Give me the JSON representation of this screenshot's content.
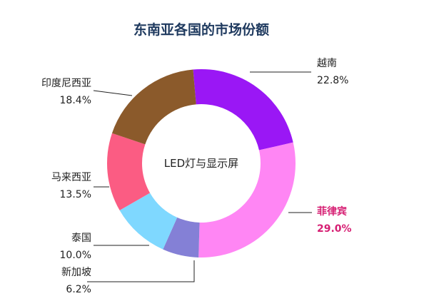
{
  "chart_data": {
    "type": "pie",
    "title": "东南亚各国的市场份额",
    "center_label": "LED灯与显示屏",
    "slices": [
      {
        "name": "越南",
        "value": 22.8,
        "value_label": "22.8%",
        "color": "#9a17f5",
        "highlight": false
      },
      {
        "name": "菲律宾",
        "value": 29.0,
        "value_label": "29.0%",
        "color": "#ff86f4",
        "highlight": true
      },
      {
        "name": "新加坡",
        "value": 6.2,
        "value_label": "6.2%",
        "color": "#8480d6",
        "highlight": false
      },
      {
        "name": "泰国",
        "value": 10.0,
        "value_label": "10.0%",
        "color": "#7fd8ff",
        "highlight": false
      },
      {
        "name": "马来西亚",
        "value": 13.5,
        "value_label": "13.5%",
        "color": "#fb5c83",
        "highlight": false
      },
      {
        "name": "印度尼西亚",
        "value": 18.4,
        "value_label": "18.4%",
        "color": "#8b5a2b",
        "highlight": false
      }
    ],
    "highlight_color": "#d61f73"
  }
}
